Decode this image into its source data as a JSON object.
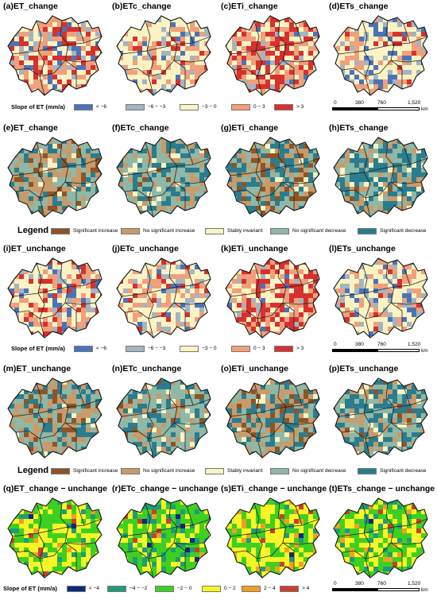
{
  "panels": [
    {
      "label": "(a)ET_change",
      "type": "slope5"
    },
    {
      "label": "(b)ETc_change",
      "type": "slope5"
    },
    {
      "label": "(c)ETi_change",
      "type": "slope5"
    },
    {
      "label": "(d)ETs_change",
      "type": "slope5"
    },
    {
      "label": "(e)ET_change",
      "type": "trend"
    },
    {
      "label": "(f)ETc_change",
      "type": "trend"
    },
    {
      "label": "(g)ETi_change",
      "type": "trend"
    },
    {
      "label": "(h)ETs_change",
      "type": "trend"
    },
    {
      "label": "(i)ET_unchange",
      "type": "slope5"
    },
    {
      "label": "(j)ETc_unchange",
      "type": "slope5"
    },
    {
      "label": "(k)ETi_unchange",
      "type": "slope5"
    },
    {
      "label": "(l)ETs_unchange",
      "type": "slope5"
    },
    {
      "label": "(m)ET_unchange",
      "type": "trend"
    },
    {
      "label": "(n)ETc_unchange",
      "type": "trend"
    },
    {
      "label": "(o)ETi_unchange",
      "type": "trend"
    },
    {
      "label": "(p)ETs_unchange",
      "type": "trend"
    },
    {
      "label": "(q)ET_change − unchange",
      "type": "diff"
    },
    {
      "label": "(r)ETc_change − unchange",
      "type": "diff"
    },
    {
      "label": "(s)ETi_change − unchange",
      "type": "diff"
    },
    {
      "label": "(t)ETs_change − unchange",
      "type": "diff"
    }
  ],
  "slope_legend": {
    "title": "Slope of ET (mm/a)",
    "classes": [
      {
        "label": "< −6",
        "color": "#4a74b8"
      },
      {
        "label": "−6 − −3",
        "color": "#a3b4c2"
      },
      {
        "label": "−3 − 0",
        "color": "#fbf3c4"
      },
      {
        "label": "0 − 3",
        "color": "#f0a07a"
      },
      {
        "label": "> 3",
        "color": "#d8302e"
      }
    ]
  },
  "trend_legend": {
    "title": "Legend",
    "classes": [
      {
        "label": "Significant increase",
        "color": "#8e5426"
      },
      {
        "label": "No significant increase",
        "color": "#c99a6a"
      },
      {
        "label": "Stably invariant",
        "color": "#f8f2c4"
      },
      {
        "label": "No significant decrease",
        "color": "#8fb8a6"
      },
      {
        "label": "Significant decrease",
        "color": "#2a7d8e"
      }
    ]
  },
  "diff_legend": {
    "title": "Slope of ET (mm/a)",
    "classes": [
      {
        "label": "< −4",
        "color": "#0c2a7a"
      },
      {
        "label": "−4 − −2",
        "color": "#1e9c7a"
      },
      {
        "label": "−2 − 0",
        "color": "#3ed020"
      },
      {
        "label": "0 − 2",
        "color": "#f7f526"
      },
      {
        "label": "2 − 4",
        "color": "#f0a020"
      },
      {
        "label": "> 4",
        "color": "#c8402c"
      }
    ]
  },
  "scale_bar": {
    "ticks": [
      "0",
      "380",
      "760",
      "1,520"
    ],
    "unit": "km"
  }
}
